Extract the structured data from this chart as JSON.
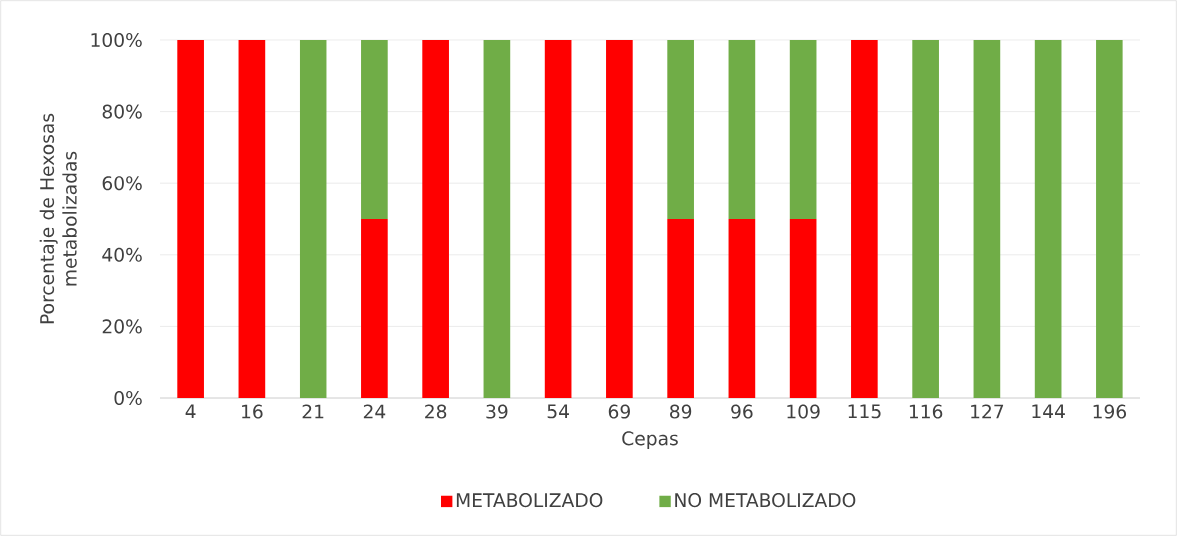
{
  "chart_data": {
    "type": "bar",
    "stacked": true,
    "xlabel": "Cepas",
    "ylabel": "Porcentaje de Hexosas metabolizadas",
    "categories": [
      "4",
      "16",
      "21",
      "24",
      "28",
      "39",
      "54",
      "69",
      "89",
      "96",
      "109",
      "115",
      "116",
      "127",
      "144",
      "196"
    ],
    "series": [
      {
        "name": "METABOLIZADO",
        "color": "#ff0000",
        "values": [
          100,
          100,
          0,
          50,
          100,
          0,
          100,
          100,
          50,
          50,
          50,
          100,
          0,
          0,
          0,
          0
        ]
      },
      {
        "name": "NO METABOLIZADO",
        "color": "#70ad47",
        "values": [
          0,
          0,
          100,
          50,
          0,
          100,
          0,
          0,
          50,
          50,
          50,
          0,
          100,
          100,
          100,
          100
        ]
      }
    ],
    "ylim": [
      0,
      100
    ],
    "yticks": [
      {
        "value": 0,
        "label": "0%"
      },
      {
        "value": 20,
        "label": "20%"
      },
      {
        "value": 40,
        "label": "40%"
      },
      {
        "value": 60,
        "label": "60%"
      },
      {
        "value": 80,
        "label": "80%"
      },
      {
        "value": 100,
        "label": "100%"
      }
    ],
    "grid": "y",
    "legend": "bottom"
  }
}
